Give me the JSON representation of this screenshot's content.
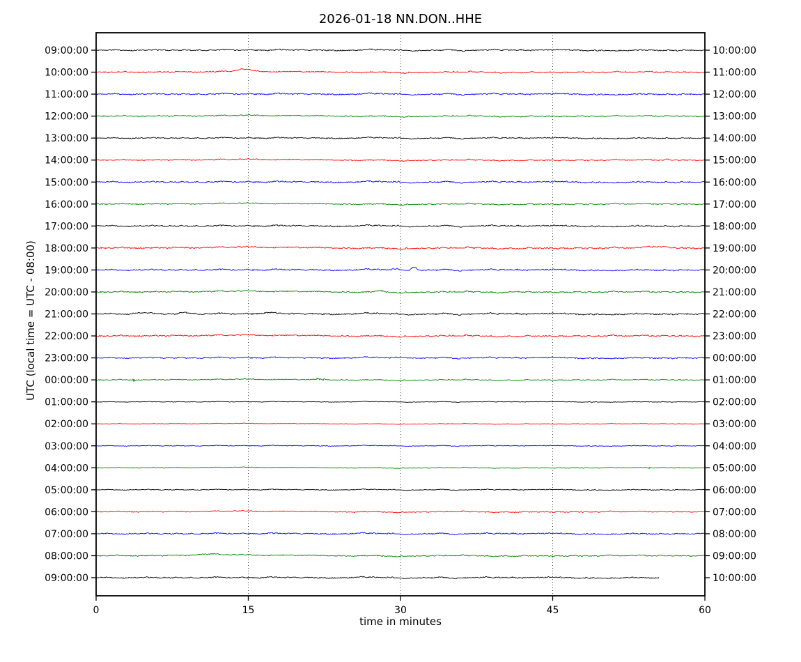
{
  "chart_data": {
    "type": "line",
    "subtype": "helicorder-dayplot",
    "title": "2026-01-18 NN.DON..HHE",
    "xlabel": "time in minutes",
    "ylabel": "UTC (local time = UTC - 08:00)",
    "x_range": [
      0,
      60
    ],
    "x_ticks": [
      0,
      15,
      30,
      45,
      60
    ],
    "grid_vertical_dotted_minutes": [
      15,
      30,
      45
    ],
    "grid_color": "#404040",
    "color_cycle": [
      "#000000",
      "#ff0000",
      "#0000ff",
      "#008000"
    ],
    "minutes_per_row": 60,
    "rows": [
      {
        "utc_start": "09:00:00",
        "utc_end": "10:00:00",
        "color": "#000000",
        "amp": 1.2,
        "end_minute": 60,
        "events": []
      },
      {
        "utc_start": "10:00:00",
        "utc_end": "11:00:00",
        "color": "#ff0000",
        "amp": 1.2,
        "end_minute": 60,
        "events": [
          {
            "minute": 14.5,
            "amp": 3.0,
            "width": 0.9,
            "kind": "bump"
          }
        ]
      },
      {
        "utc_start": "11:00:00",
        "utc_end": "12:00:00",
        "color": "#0000ff",
        "amp": 1.3,
        "end_minute": 60,
        "events": []
      },
      {
        "utc_start": "12:00:00",
        "utc_end": "13:00:00",
        "color": "#008000",
        "amp": 1.1,
        "end_minute": 60,
        "events": []
      },
      {
        "utc_start": "13:00:00",
        "utc_end": "14:00:00",
        "color": "#000000",
        "amp": 1.1,
        "end_minute": 60,
        "events": []
      },
      {
        "utc_start": "14:00:00",
        "utc_end": "15:00:00",
        "color": "#ff0000",
        "amp": 1.1,
        "end_minute": 60,
        "events": [
          {
            "minute": 56.3,
            "amp": 1.8,
            "width": 0.15,
            "kind": "burst"
          }
        ]
      },
      {
        "utc_start": "15:00:00",
        "utc_end": "16:00:00",
        "color": "#0000ff",
        "amp": 1.3,
        "end_minute": 60,
        "events": []
      },
      {
        "utc_start": "16:00:00",
        "utc_end": "17:00:00",
        "color": "#008000",
        "amp": 1.1,
        "end_minute": 60,
        "events": []
      },
      {
        "utc_start": "17:00:00",
        "utc_end": "18:00:00",
        "color": "#000000",
        "amp": 1.3,
        "end_minute": 60,
        "events": []
      },
      {
        "utc_start": "18:00:00",
        "utc_end": "19:00:00",
        "color": "#ff0000",
        "amp": 1.4,
        "end_minute": 60,
        "events": [
          {
            "minute": 55.3,
            "amp": 2.0,
            "width": 1.2,
            "kind": "bump"
          }
        ]
      },
      {
        "utc_start": "19:00:00",
        "utc_end": "20:00:00",
        "color": "#0000ff",
        "amp": 1.3,
        "end_minute": 60,
        "events": [
          {
            "minute": 31.3,
            "amp": 5.0,
            "width": 0.35,
            "kind": "bump"
          },
          {
            "minute": 29.6,
            "amp": 1.2,
            "width": 0.5,
            "kind": "bump"
          }
        ]
      },
      {
        "utc_start": "20:00:00",
        "utc_end": "21:00:00",
        "color": "#008000",
        "amp": 1.3,
        "end_minute": 60,
        "events": [
          {
            "minute": 28.0,
            "amp": 1.5,
            "width": 0.6,
            "kind": "bump"
          },
          {
            "minute": 41.5,
            "amp": 1.5,
            "width": 0.5,
            "kind": "bump"
          }
        ]
      },
      {
        "utc_start": "21:00:00",
        "utc_end": "22:00:00",
        "color": "#000000",
        "amp": 1.4,
        "end_minute": 60,
        "events": [
          {
            "minute": 4.5,
            "amp": 1.5,
            "width": 1.0,
            "kind": "bump"
          },
          {
            "minute": 8.8,
            "amp": 2.2,
            "width": 0.6,
            "kind": "bump"
          },
          {
            "minute": 16.8,
            "amp": 1.8,
            "width": 0.7,
            "kind": "bump"
          }
        ]
      },
      {
        "utc_start": "22:00:00",
        "utc_end": "23:00:00",
        "color": "#ff0000",
        "amp": 1.3,
        "end_minute": 60,
        "events": []
      },
      {
        "utc_start": "23:00:00",
        "utc_end": "00:00:00",
        "color": "#0000ff",
        "amp": 1.2,
        "end_minute": 60,
        "events": [
          {
            "minute": 30.5,
            "amp": 1.2,
            "width": 0.8,
            "kind": "bump"
          }
        ]
      },
      {
        "utc_start": "00:00:00",
        "utc_end": "01:00:00",
        "color": "#008000",
        "amp": 0.9,
        "end_minute": 60,
        "events": [
          {
            "minute": 3.6,
            "amp": 3.5,
            "width": 0.25,
            "kind": "burst"
          },
          {
            "minute": 22.2,
            "amp": 2.5,
            "width": 0.5,
            "kind": "burst"
          }
        ]
      },
      {
        "utc_start": "01:00:00",
        "utc_end": "02:00:00",
        "color": "#000000",
        "amp": 0.6,
        "end_minute": 60,
        "events": []
      },
      {
        "utc_start": "02:00:00",
        "utc_end": "03:00:00",
        "color": "#ff0000",
        "amp": 0.6,
        "end_minute": 60,
        "events": []
      },
      {
        "utc_start": "03:00:00",
        "utc_end": "04:00:00",
        "color": "#0000ff",
        "amp": 0.7,
        "end_minute": 60,
        "events": []
      },
      {
        "utc_start": "04:00:00",
        "utc_end": "05:00:00",
        "color": "#008000",
        "amp": 0.7,
        "end_minute": 60,
        "events": [
          {
            "minute": 54.5,
            "amp": 2.0,
            "width": 0.08,
            "kind": "burst"
          }
        ]
      },
      {
        "utc_start": "05:00:00",
        "utc_end": "06:00:00",
        "color": "#000000",
        "amp": 0.8,
        "end_minute": 60,
        "events": []
      },
      {
        "utc_start": "06:00:00",
        "utc_end": "07:00:00",
        "color": "#ff0000",
        "amp": 1.0,
        "end_minute": 60,
        "events": []
      },
      {
        "utc_start": "07:00:00",
        "utc_end": "08:00:00",
        "color": "#0000ff",
        "amp": 1.2,
        "end_minute": 60,
        "events": []
      },
      {
        "utc_start": "08:00:00",
        "utc_end": "09:00:00",
        "color": "#008000",
        "amp": 1.1,
        "end_minute": 60,
        "events": [
          {
            "minute": 11.0,
            "amp": 1.6,
            "width": 1.8,
            "kind": "bump"
          }
        ]
      },
      {
        "utc_start": "09:00:00",
        "utc_end": "10:00:00",
        "color": "#000000",
        "amp": 1.2,
        "end_minute": 55.5,
        "events": []
      }
    ]
  }
}
